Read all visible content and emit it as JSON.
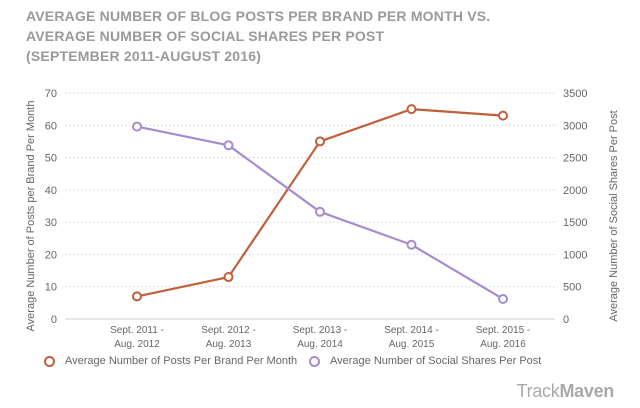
{
  "title": {
    "line1": "AVERAGE NUMBER OF BLOG POSTS PER BRAND PER MONTH VS.",
    "line2": "AVERAGE NUMBER OF SOCIAL SHARES PER POST",
    "line3": "(SEPTEMBER 2011-AUGUST 2016)"
  },
  "brand": {
    "part1": "Track",
    "part2": "Maven"
  },
  "colors": {
    "posts": "#c0603a",
    "shares": "#a78bd0",
    "grid": "#cfcfcf",
    "text": "#666666"
  },
  "chart_data": {
    "type": "line",
    "categories": [
      [
        "Sept. 2011 -",
        "Aug. 2012"
      ],
      [
        "Sept. 2012 -",
        "Aug. 2013"
      ],
      [
        "Sept. 2013 -",
        "Aug. 2014"
      ],
      [
        "Sept. 2014 -",
        "Aug. 2015"
      ],
      [
        "Sept. 2015 -",
        "Aug. 2016"
      ]
    ],
    "y_left": {
      "label": "Average Number of Posts per Brand Per Month",
      "lim": [
        0,
        70
      ],
      "ticks": [
        "0",
        "10",
        "20",
        "30",
        "40",
        "50",
        "60",
        "70"
      ]
    },
    "y_right": {
      "label": "Average Number of Social Shares Per Post",
      "lim": [
        0,
        3500
      ],
      "ticks": [
        "0",
        "500",
        "1000",
        "1500",
        "2000",
        "2500",
        "3000",
        "3500"
      ]
    },
    "series": [
      {
        "name": "Average Number of Posts Per Brand Per Month",
        "axis": "left",
        "values": [
          7,
          13,
          55,
          65,
          63
        ]
      },
      {
        "name": "Average Number of Social Shares Per Post",
        "axis": "right",
        "values": [
          2980,
          2690,
          1660,
          1150,
          310
        ]
      }
    ],
    "grid": true,
    "legend": "bottom"
  }
}
